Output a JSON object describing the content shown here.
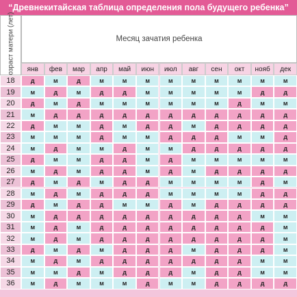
{
  "title": "“Древнекитайская таблица определения пола будущего ребенка”",
  "table": {
    "row_header": "Возраст матери (лет)",
    "column_header": "Месяц зачатия ребенка",
    "months": [
      "янв",
      "фев",
      "мар",
      "апр",
      "май",
      "июн",
      "июл",
      "авг",
      "сен",
      "окт",
      "нояб",
      "дек"
    ],
    "rows": [
      {
        "age": "18",
        "cells": [
          "д",
          "м",
          "д",
          "м",
          "м",
          "м",
          "м",
          "м",
          "м",
          "м",
          "м",
          "м"
        ]
      },
      {
        "age": "19",
        "cells": [
          "м",
          "д",
          "м",
          "д",
          "д",
          "м",
          "м",
          "м",
          "м",
          "м",
          "д",
          "д"
        ]
      },
      {
        "age": "20",
        "cells": [
          "д",
          "м",
          "д",
          "м",
          "м",
          "м",
          "м",
          "м",
          "м",
          "д",
          "м",
          "м"
        ]
      },
      {
        "age": "21",
        "cells": [
          "м",
          "д",
          "д",
          "д",
          "д",
          "д",
          "д",
          "д",
          "д",
          "д",
          "д",
          "д"
        ]
      },
      {
        "age": "22",
        "cells": [
          "д",
          "м",
          "м",
          "д",
          "м",
          "д",
          "д",
          "м",
          "д",
          "д",
          "д",
          "д"
        ]
      },
      {
        "age": "23",
        "cells": [
          "м",
          "м",
          "м",
          "д",
          "м",
          "м",
          "д",
          "д",
          "д",
          "м",
          "м",
          "д"
        ]
      },
      {
        "age": "24",
        "cells": [
          "м",
          "д",
          "м",
          "м",
          "д",
          "м",
          "м",
          "д",
          "д",
          "д",
          "д",
          "д"
        ]
      },
      {
        "age": "25",
        "cells": [
          "д",
          "м",
          "м",
          "д",
          "д",
          "м",
          "д",
          "м",
          "м",
          "м",
          "м",
          "м"
        ]
      },
      {
        "age": "26",
        "cells": [
          "м",
          "д",
          "м",
          "д",
          "д",
          "м",
          "д",
          "м",
          "д",
          "д",
          "д",
          "д"
        ]
      },
      {
        "age": "27",
        "cells": [
          "д",
          "м",
          "д",
          "м",
          "д",
          "д",
          "м",
          "м",
          "м",
          "м",
          "д",
          "м"
        ]
      },
      {
        "age": "28",
        "cells": [
          "м",
          "д",
          "м",
          "д",
          "д",
          "д",
          "м",
          "м",
          "м",
          "м",
          "д",
          "д"
        ]
      },
      {
        "age": "29",
        "cells": [
          "д",
          "м",
          "д",
          "д",
          "м",
          "м",
          "д",
          "м",
          "д",
          "д",
          "д",
          "д"
        ]
      },
      {
        "age": "30",
        "cells": [
          "м",
          "д",
          "д",
          "д",
          "д",
          "д",
          "д",
          "д",
          "д",
          "д",
          "м",
          "м"
        ]
      },
      {
        "age": "31",
        "cells": [
          "м",
          "д",
          "м",
          "д",
          "д",
          "д",
          "д",
          "д",
          "д",
          "д",
          "д",
          "м"
        ]
      },
      {
        "age": "32",
        "cells": [
          "м",
          "д",
          "м",
          "д",
          "д",
          "д",
          "д",
          "д",
          "д",
          "д",
          "д",
          "м"
        ]
      },
      {
        "age": "33",
        "cells": [
          "д",
          "м",
          "д",
          "м",
          "д",
          "д",
          "д",
          "м",
          "д",
          "д",
          "д",
          "м"
        ]
      },
      {
        "age": "34",
        "cells": [
          "м",
          "д",
          "м",
          "д",
          "д",
          "д",
          "д",
          "д",
          "д",
          "д",
          "м",
          "м"
        ]
      },
      {
        "age": "35",
        "cells": [
          "м",
          "м",
          "д",
          "м",
          "д",
          "д",
          "д",
          "м",
          "д",
          "д",
          "м",
          "м"
        ]
      },
      {
        "age": "36",
        "cells": [
          "м",
          "д",
          "м",
          "м",
          "м",
          "д",
          "м",
          "м",
          "д",
          "д",
          "д",
          "д"
        ]
      }
    ]
  }
}
